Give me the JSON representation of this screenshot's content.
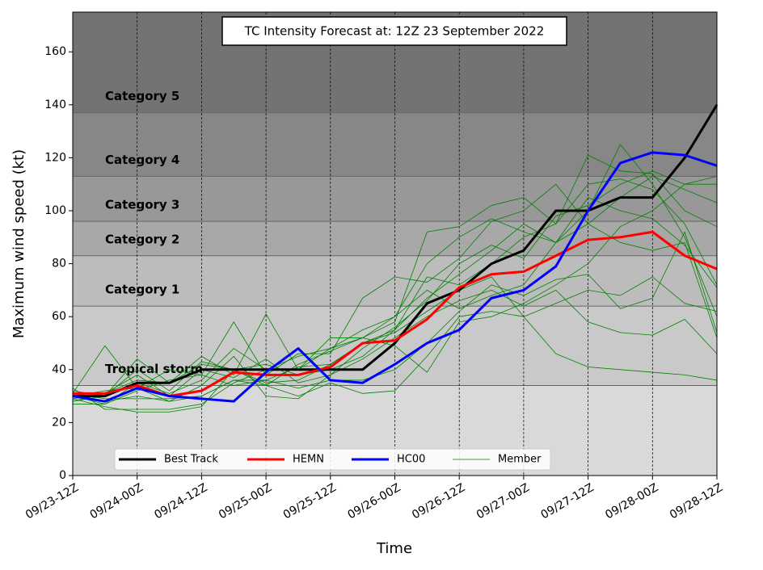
{
  "chart_data": {
    "type": "line",
    "title": "TC Intensity Forecast at: 12Z 23 September 2022",
    "x_label": "Time",
    "y_label": "Maximum wind speed (kt)",
    "categories": [
      "09/23-12Z",
      null,
      "09/24-00Z",
      null,
      "09/24-12Z",
      null,
      "09/25-00Z",
      null,
      "09/25-12Z",
      null,
      "09/26-00Z",
      null,
      "09/26-12Z",
      null,
      "09/27-00Z",
      null,
      "09/27-12Z",
      null,
      "09/28-00Z",
      null,
      "09/28-12Z"
    ],
    "ylim": [
      0,
      175
    ],
    "yticks": [
      0,
      20,
      40,
      60,
      80,
      100,
      120,
      140,
      160
    ],
    "grid": true,
    "background": "#d9d9d9",
    "legend": "lower left",
    "bands": [
      {
        "label": "Tropical storm",
        "from": 34,
        "to": 64,
        "color": "#c9c9c9"
      },
      {
        "label": "Category 1",
        "from": 64,
        "to": 83,
        "color": "#bcbcbc"
      },
      {
        "label": "Category 2",
        "from": 83,
        "to": 96,
        "color": "#a8a8a8"
      },
      {
        "label": "Category 3",
        "from": 96,
        "to": 113,
        "color": "#989898"
      },
      {
        "label": "Category 4",
        "from": 113,
        "to": 137,
        "color": "#878787"
      },
      {
        "label": "Category 5",
        "from": 137,
        "to": 175,
        "color": "#737373"
      }
    ],
    "members": {
      "name": "Member",
      "color": "#008000",
      "runs": [
        [
          29,
          26,
          24,
          24,
          26,
          40,
          42,
          38,
          40,
          45,
          55,
          75,
          72,
          80,
          90,
          95,
          110,
          112,
          108,
          95,
          72
        ],
        [
          33,
          25,
          25,
          25,
          27,
          35,
          40,
          45,
          48,
          52,
          60,
          80,
          90,
          97,
          92,
          88,
          100,
          125,
          110,
          90,
          60
        ],
        [
          28,
          30,
          44,
          35,
          45,
          38,
          61,
          40,
          52,
          52,
          58,
          92,
          94,
          102,
          105,
          95,
          121,
          115,
          114,
          100,
          94
        ],
        [
          31,
          49,
          33,
          40,
          38,
          58,
          38,
          46,
          46,
          67,
          75,
          73,
          82,
          96,
          100,
          110,
          95,
          105,
          113,
          108,
          103
        ],
        [
          30,
          28,
          30,
          28,
          30,
          36,
          34,
          30,
          35,
          31,
          32,
          45,
          60,
          62,
          60,
          46,
          41,
          40,
          39,
          38,
          36
        ],
        [
          27,
          27,
          32,
          36,
          38,
          34,
          36,
          33,
          36,
          36,
          40,
          50,
          62,
          72,
          68,
          74,
          76,
          63,
          67,
          92,
          54
        ],
        [
          30,
          32,
          33,
          28,
          34,
          45,
          30,
          29,
          38,
          44,
          52,
          60,
          66,
          70,
          64,
          70,
          58,
          54,
          53,
          59,
          46
        ],
        [
          32,
          30,
          40,
          32,
          43,
          40,
          35,
          36,
          42,
          50,
          55,
          67,
          76,
          85,
          95,
          88,
          105,
          100,
          97,
          87,
          71
        ],
        [
          29,
          31,
          38,
          30,
          40,
          37,
          44,
          35,
          38,
          48,
          56,
          66,
          80,
          87,
          82,
          98,
          102,
          110,
          115,
          110,
          113
        ],
        [
          30,
          27,
          35,
          31,
          36,
          48,
          40,
          40,
          48,
          55,
          60,
          70,
          63,
          68,
          72,
          88,
          95,
          88,
          85,
          88,
          52
        ],
        [
          31,
          29,
          29,
          29,
          30,
          36,
          36,
          41,
          42,
          50,
          54,
          62,
          70,
          75,
          60,
          65,
          70,
          68,
          75,
          65,
          62
        ],
        [
          28,
          31,
          36,
          35,
          42,
          40,
          34,
          42,
          47,
          52,
          49,
          39,
          58,
          60,
          65,
          72,
          80,
          94,
          100,
          110,
          110
        ]
      ]
    },
    "series": [
      {
        "name": "Best Track",
        "color": "#000000",
        "values": [
          30,
          30,
          35,
          35,
          40,
          40,
          40,
          40,
          40,
          40,
          50,
          65,
          70,
          80,
          85,
          100,
          100,
          105,
          105,
          120,
          140
        ]
      },
      {
        "name": "HEMN",
        "color": "#ff0000",
        "values": [
          31,
          31,
          34,
          30,
          32,
          39,
          38,
          38,
          41,
          50,
          51,
          59,
          71,
          76,
          77,
          83,
          89,
          90,
          92,
          83,
          78
        ]
      },
      {
        "name": "HC00",
        "color": "#0000ff",
        "values": [
          30,
          28,
          33,
          30,
          29,
          28,
          39,
          48,
          36,
          35,
          42,
          50,
          55,
          67,
          70,
          79,
          100,
          118,
          122,
          121,
          117
        ]
      }
    ]
  }
}
